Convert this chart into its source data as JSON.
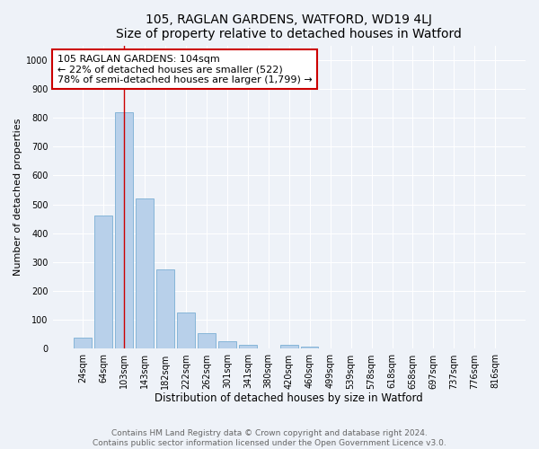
{
  "title": "105, RAGLAN GARDENS, WATFORD, WD19 4LJ",
  "subtitle": "Size of property relative to detached houses in Watford",
  "xlabel": "Distribution of detached houses by size in Watford",
  "ylabel": "Number of detached properties",
  "categories": [
    "24sqm",
    "64sqm",
    "103sqm",
    "143sqm",
    "182sqm",
    "222sqm",
    "262sqm",
    "301sqm",
    "341sqm",
    "380sqm",
    "420sqm",
    "460sqm",
    "499sqm",
    "539sqm",
    "578sqm",
    "618sqm",
    "658sqm",
    "697sqm",
    "737sqm",
    "776sqm",
    "816sqm"
  ],
  "values": [
    40,
    460,
    820,
    520,
    275,
    125,
    55,
    25,
    13,
    0,
    13,
    8,
    0,
    0,
    0,
    0,
    0,
    0,
    0,
    0,
    0
  ],
  "bar_color": "#b8d0ea",
  "bar_edge_color": "#7aaed4",
  "vline_x_index": 2,
  "vline_color": "#cc0000",
  "annotation_text": "105 RAGLAN GARDENS: 104sqm\n← 22% of detached houses are smaller (522)\n78% of semi-detached houses are larger (1,799) →",
  "annotation_box_color": "#ffffff",
  "annotation_box_edge_color": "#cc0000",
  "ylim": [
    0,
    1050
  ],
  "yticks": [
    0,
    100,
    200,
    300,
    400,
    500,
    600,
    700,
    800,
    900,
    1000
  ],
  "background_color": "#eef2f8",
  "grid_color": "#ffffff",
  "footer": "Contains HM Land Registry data © Crown copyright and database right 2024.\nContains public sector information licensed under the Open Government Licence v3.0.",
  "title_fontsize": 10,
  "xlabel_fontsize": 8.5,
  "ylabel_fontsize": 8,
  "tick_fontsize": 7,
  "annotation_fontsize": 8,
  "footer_fontsize": 6.5
}
